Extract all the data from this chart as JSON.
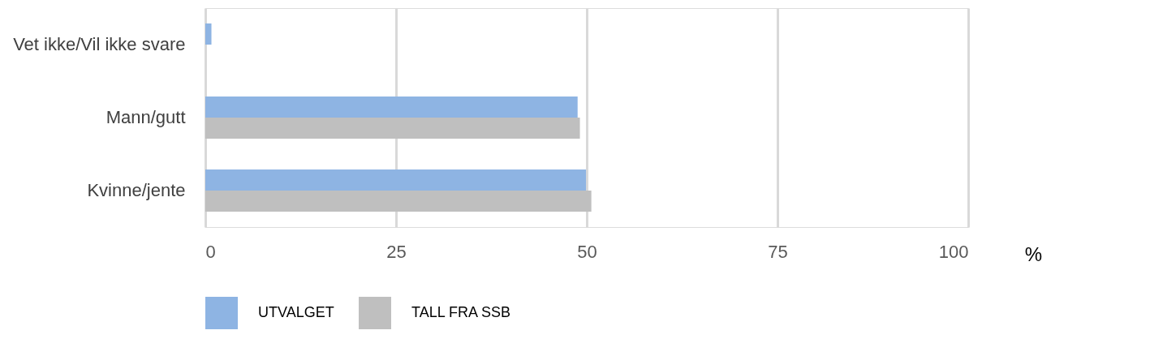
{
  "chart_data": {
    "type": "bar",
    "orientation": "horizontal",
    "xlabel": "%",
    "categories": [
      "Vet ikke/Vil ikke svare",
      "Mann/gutt",
      "Kvinne/jente"
    ],
    "series": [
      {
        "name": "UTVALGET",
        "color": "#8eb4e3",
        "values": [
          0.8,
          48.8,
          49.9
        ]
      },
      {
        "name": "TALL FRA SSB",
        "color": "#bfbfbf",
        "values": [
          null,
          49.1,
          50.6
        ]
      }
    ],
    "xlim": [
      0,
      100
    ],
    "xticks": [
      0,
      25,
      50,
      75,
      100
    ],
    "grid": "x",
    "legend": "bottom"
  }
}
